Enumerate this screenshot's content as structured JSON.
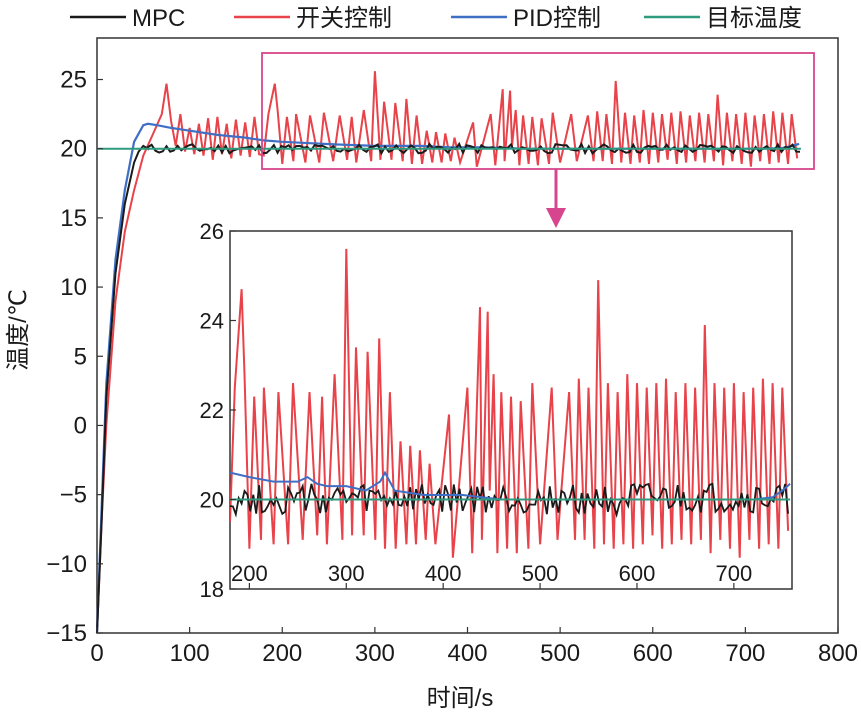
{
  "chart_data": {
    "type": "line",
    "xlabel": "时间/s",
    "ylabel": "温度/℃",
    "xlim": [
      0,
      800
    ],
    "ylim": [
      -15,
      28
    ],
    "xticks": [
      "0",
      "100",
      "200",
      "300",
      "400",
      "500",
      "600",
      "700",
      "800"
    ],
    "yticks": [
      "−15",
      "−10",
      "−5",
      "0",
      "5",
      "10",
      "15",
      "20",
      "25"
    ],
    "legend": [
      {
        "name": "MPC",
        "color": "#1a1a1a"
      },
      {
        "name": "开关控制",
        "color": "#e8434a"
      },
      {
        "name": "PID控制",
        "color": "#3f6fc4"
      },
      {
        "name": "目标温度",
        "color": "#2e9b7e"
      }
    ],
    "series": [
      {
        "name": "MPC",
        "color": "#1a1a1a",
        "ramp": {
          "x": [
            0,
            5,
            10,
            20,
            30,
            40,
            45,
            50,
            55
          ],
          "y": [
            -15,
            -7,
            2,
            11,
            16,
            19,
            19.8,
            20.2,
            20
          ]
        },
        "steady": {
          "x_start": 55,
          "x_end": 760,
          "mean": 20,
          "amplitude": 0.35
        }
      },
      {
        "name": "开关控制",
        "color": "#e8434a",
        "ramp": {
          "x": [
            0,
            5,
            10,
            20,
            30,
            40,
            50,
            60,
            70,
            75,
            80,
            85,
            90,
            95,
            100,
            105,
            110,
            115,
            120,
            125,
            130,
            135,
            140,
            145,
            150,
            155,
            160,
            165,
            170,
            175
          ],
          "y": [
            -15,
            -7,
            0,
            9,
            14,
            17,
            19.5,
            21,
            22.5,
            24.7,
            22,
            20.2,
            22.5,
            19.8,
            21.5,
            19.6,
            21.8,
            19.5,
            22.2,
            19.2,
            22.3,
            19.6,
            21.8,
            19.3,
            22.1,
            19.5,
            21.9,
            19.4,
            22.3,
            19.6
          ]
        },
        "zoom": {
          "x": [
            180,
            185,
            192,
            195,
            200,
            205,
            212,
            215,
            225,
            230,
            240,
            245,
            255,
            262,
            270,
            275,
            280,
            288,
            296,
            300,
            306,
            310,
            318,
            322,
            330,
            334,
            340,
            345,
            351,
            356,
            362,
            366,
            372,
            376,
            382,
            386,
            392,
            406,
            410,
            425,
            430,
            438,
            440,
            446,
            448,
            452,
            456,
            460,
            466,
            470,
            476,
            480,
            488,
            492,
            500,
            512,
            518,
            530,
            536,
            540,
            546,
            550,
            556,
            560,
            566,
            570,
            576,
            580,
            586,
            590,
            596,
            600,
            606,
            610,
            616,
            620,
            626,
            630,
            636,
            640,
            646,
            650,
            656,
            660,
            666,
            670,
            676,
            680,
            686,
            690,
            696,
            700,
            706,
            710,
            716,
            720,
            726,
            730,
            736,
            740,
            746,
            750,
            756
          ],
          "y": [
            19.5,
            22.5,
            24.7,
            22.8,
            18.9,
            22.3,
            19.1,
            22.5,
            19,
            22.4,
            19,
            22.6,
            19.1,
            22.4,
            19.2,
            22.3,
            19,
            22.8,
            19.1,
            25.6,
            19.2,
            23.4,
            19.2,
            23.3,
            19.1,
            23.6,
            18.9,
            22.4,
            18.9,
            21.3,
            19,
            21.2,
            19,
            21.1,
            19.1,
            20.8,
            19,
            21.9,
            18.7,
            22.5,
            18.8,
            24.3,
            19.1,
            24.2,
            20.2,
            22.8,
            18.8,
            22.4,
            18.9,
            22.3,
            18.8,
            22.2,
            18.9,
            22.6,
            19,
            22.5,
            19.1,
            22.4,
            19.1,
            22.7,
            19.1,
            22.5,
            18.9,
            24.9,
            19,
            22.6,
            18.9,
            22.4,
            19,
            22.8,
            18.9,
            22.6,
            19,
            22.5,
            19.2,
            22.6,
            18.9,
            22.7,
            19,
            22.4,
            19.1,
            22.6,
            19,
            22.5,
            19.1,
            23.9,
            18.8,
            22.6,
            19.1,
            22.5,
            18.9,
            22.6,
            18.7,
            22.4,
            19.1,
            22.5,
            18.9,
            22.7,
            19,
            22.6,
            18.9,
            22.5,
            19.3
          ]
        }
      },
      {
        "name": "PID控制",
        "color": "#3f6fc4",
        "ramp": {
          "x": [
            0,
            5,
            10,
            20,
            30,
            40,
            50,
            55,
            65,
            80,
            100,
            130,
            160,
            180,
            200,
            230,
            260,
            300,
            340
          ],
          "y": [
            -15,
            -6,
            3,
            12,
            17,
            20.5,
            21.7,
            21.8,
            21.7,
            21.5,
            21.3,
            21,
            20.8,
            20.6,
            20.5,
            20.4,
            20.3,
            20.2,
            20.2
          ]
        },
        "zoom": {
          "x": [
            180,
            200,
            225,
            250,
            260,
            270,
            280,
            300,
            320,
            335,
            340,
            350,
            380,
            420,
            460,
            500,
            540,
            600,
            650,
            700,
            720,
            740,
            750,
            758
          ],
          "y": [
            20.6,
            20.5,
            20.4,
            20.4,
            20.5,
            20.35,
            20.3,
            20.3,
            20.2,
            20.4,
            20.6,
            20.2,
            20.1,
            20.1,
            20,
            20,
            20,
            20,
            20,
            20,
            20,
            20.05,
            20.2,
            20.35
          ]
        }
      },
      {
        "name": "目标温度",
        "color": "#2e9b7e",
        "x": [
          0,
          760
        ],
        "y": [
          20,
          20
        ]
      }
    ],
    "inset": {
      "xlim": [
        180,
        760
      ],
      "ylim": [
        18,
        26
      ],
      "xticks": [
        "200",
        "300",
        "400",
        "500",
        "600",
        "700"
      ],
      "yticks": [
        "18",
        "20",
        "22",
        "24",
        "26"
      ],
      "zoom_region_x": [
        180,
        780
      ],
      "zoom_region_y": [
        18.5,
        26.5
      ],
      "zoom_box_color": "#d6458d",
      "arrow_color": "#d6458d"
    }
  }
}
